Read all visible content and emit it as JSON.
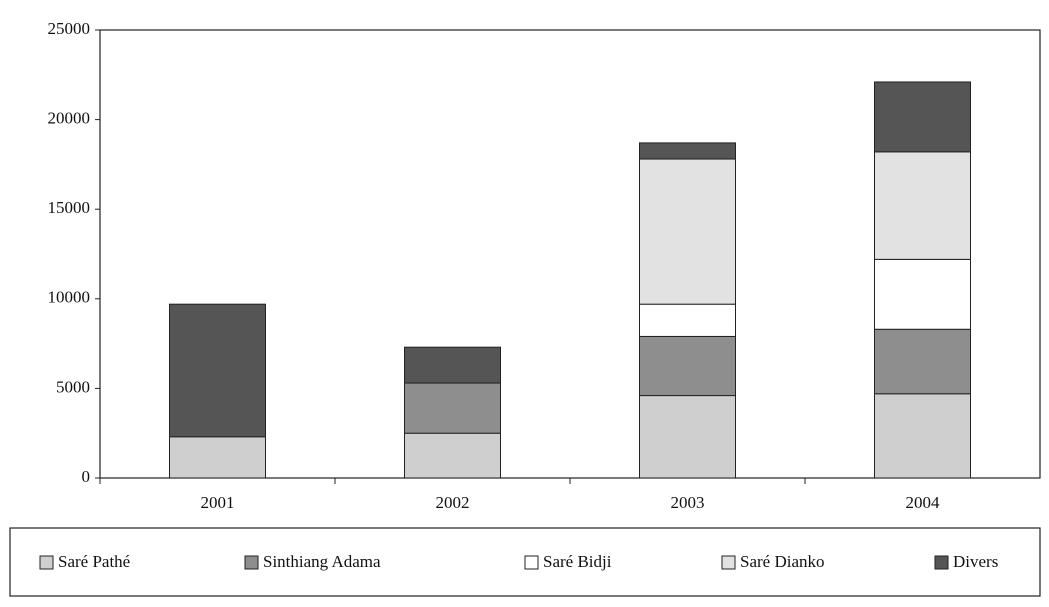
{
  "chart_data": {
    "type": "stacked_bar",
    "categories": [
      "2001",
      "2002",
      "2003",
      "2004"
    ],
    "series": [
      {
        "name": "Saré Pathé",
        "color": "#cfcfcf",
        "values": [
          2300,
          2500,
          4600,
          4700
        ]
      },
      {
        "name": "Sinthiang Adama",
        "color": "#8e8e8e",
        "values": [
          0,
          2800,
          3300,
          3600
        ]
      },
      {
        "name": "Saré Bidji",
        "color": "#ffffff",
        "values": [
          0,
          0,
          1800,
          3900
        ]
      },
      {
        "name": "Saré Dianko",
        "color": "#e2e2e2",
        "values": [
          0,
          0,
          8100,
          6000
        ]
      },
      {
        "name": "Divers",
        "color": "#555555",
        "values": [
          7400,
          2000,
          900,
          3900
        ]
      }
    ],
    "ylim": [
      0,
      25000
    ],
    "yticks": [
      0,
      5000,
      10000,
      15000,
      20000,
      25000
    ],
    "legend": "bottom"
  }
}
